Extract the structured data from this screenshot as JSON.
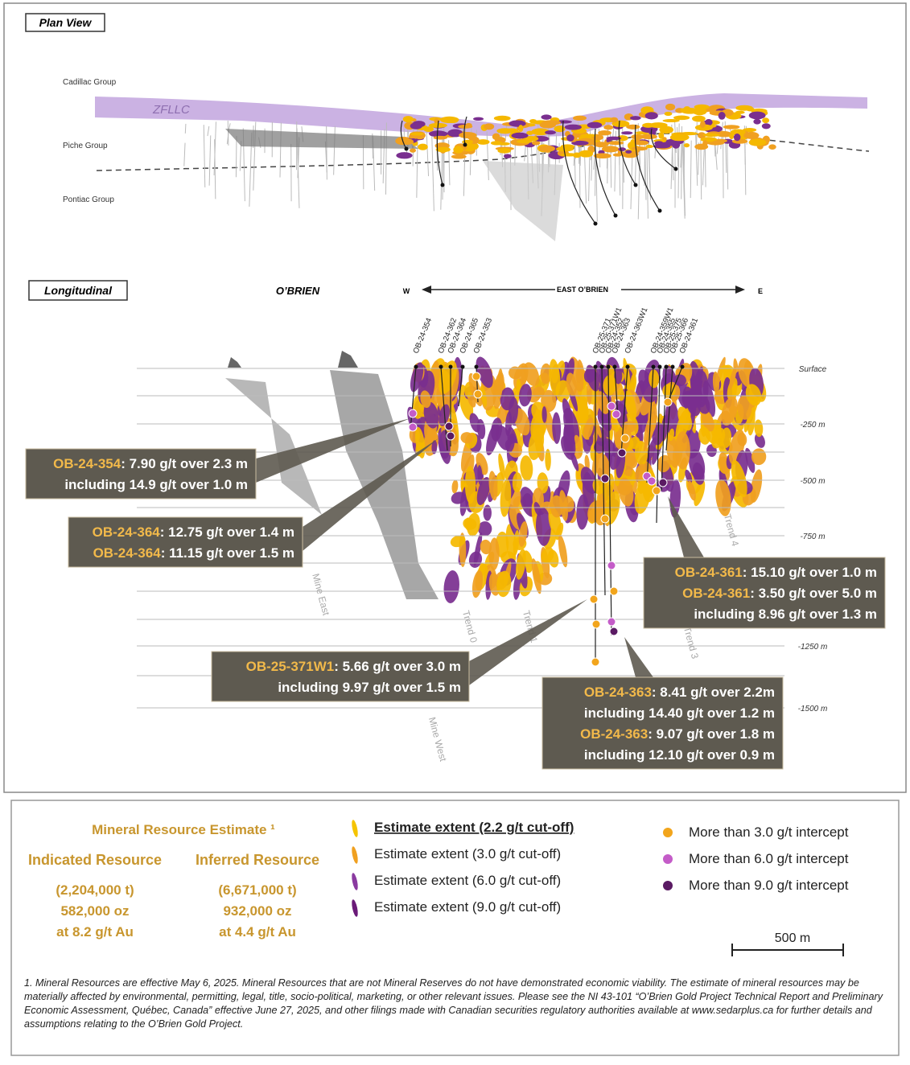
{
  "plan_view": {
    "title": "Plan View",
    "labels": [
      "Cadillac Group",
      "ZFLLC",
      "Piche Group",
      "Pontiac Group"
    ]
  },
  "longitudinal": {
    "title": "Longitudinal",
    "obrien": "O’BRIEN",
    "west": "W",
    "east_obrien": "EAST O’BRIEN",
    "east": "E",
    "drill_holes": [
      "OB-24-354",
      "OB-24-362",
      "OB-24-364",
      "OB-24-365",
      "OB-24-353",
      "OB-25-371",
      "OB-25-371W1",
      "OB-24-352",
      "OB-24-363",
      "OB-24-363W1",
      "OB-24-359W1",
      "OB-24-355",
      "OB-25-375",
      "OB-25-366",
      "OB-24-361"
    ],
    "depth_labels": [
      "Surface",
      "-250 m",
      "-500 m",
      "-750 m",
      "-1250 m",
      "-1500 m"
    ],
    "trend_labels": [
      "Mine East",
      "Trend 0",
      "Trend 1",
      "Trend 3",
      "Trend 4",
      "Mine West"
    ],
    "callouts": [
      {
        "lines": [
          {
            "hole": "OB-24-354",
            "text": ": 7.90 g/t over 2.3 m"
          },
          {
            "text": "including 14.9 g/t over 1.0 m"
          }
        ]
      },
      {
        "lines": [
          {
            "hole": "OB-24-364",
            "text": ": 12.75 g/t over 1.4 m"
          },
          {
            "hole": "OB-24-364",
            "text": ": 11.15 g/t over 1.5 m"
          }
        ]
      },
      {
        "lines": [
          {
            "hole": "OB-24-361",
            "text": ": 15.10 g/t over 1.0 m"
          },
          {
            "hole": "OB-24-361",
            "text": ": 3.50 g/t over 5.0 m"
          },
          {
            "text": "including 8.96 g/t over 1.3 m"
          }
        ]
      },
      {
        "lines": [
          {
            "hole": "OB-25-371W1",
            "text": ": 5.66 g/t over 3.0 m"
          },
          {
            "text": "including 9.97 g/t over 1.5 m"
          }
        ]
      },
      {
        "lines": [
          {
            "hole": "OB-24-363",
            "text": ": 8.41 g/t over 2.2m"
          },
          {
            "text": "including 14.40 g/t over 1.2 m"
          },
          {
            "hole": "OB-24-363",
            "text": ": 9.07 g/t over 1.8 m"
          },
          {
            "text": "including 12.10 g/t over 0.9 m"
          }
        ]
      }
    ]
  },
  "legend": {
    "title": "Mineral Resource Estimate ¹",
    "indicated": {
      "title": "Indicated Resource",
      "lines": [
        "(2,204,000 t)",
        "582,000 oz",
        "at 8.2 g/t Au"
      ]
    },
    "inferred": {
      "title": "Inferred Resource",
      "lines": [
        "(6,671,000 t)",
        "932,000 oz",
        "at 4.4 g/t Au"
      ]
    },
    "extents": [
      "Estimate extent (2.2  g/t cut-off)",
      "Estimate extent (3.0  g/t cut-off)",
      "Estimate extent (6.0 g/t cut-off)",
      "Estimate extent (9.0 g/t cut-off)"
    ],
    "intercepts": [
      "More than 3.0 g/t intercept",
      "More than 6.0 g/t intercept",
      "More than 9.0 g/t intercept"
    ],
    "scale": "500 m"
  },
  "footnote": "1. Mineral Resources are effective May 6, 2025. Mineral Resources that are not Mineral Reserves do not have demonstrated economic viability. The estimate of mineral resources may be materially affected by environmental, permitting, legal, title, socio-political, marketing, or other relevant issues. Please see the NI 43-101 “O’Brien Gold Project Technical Report and Preliminary Economic Assessment, Québec, Canada” effective June 27, 2025, and other filings made with Canadian securities regulatory authorities available at www.sedarplus.ca for further details and assumptions relating to the O’Brien Gold Project."
}
